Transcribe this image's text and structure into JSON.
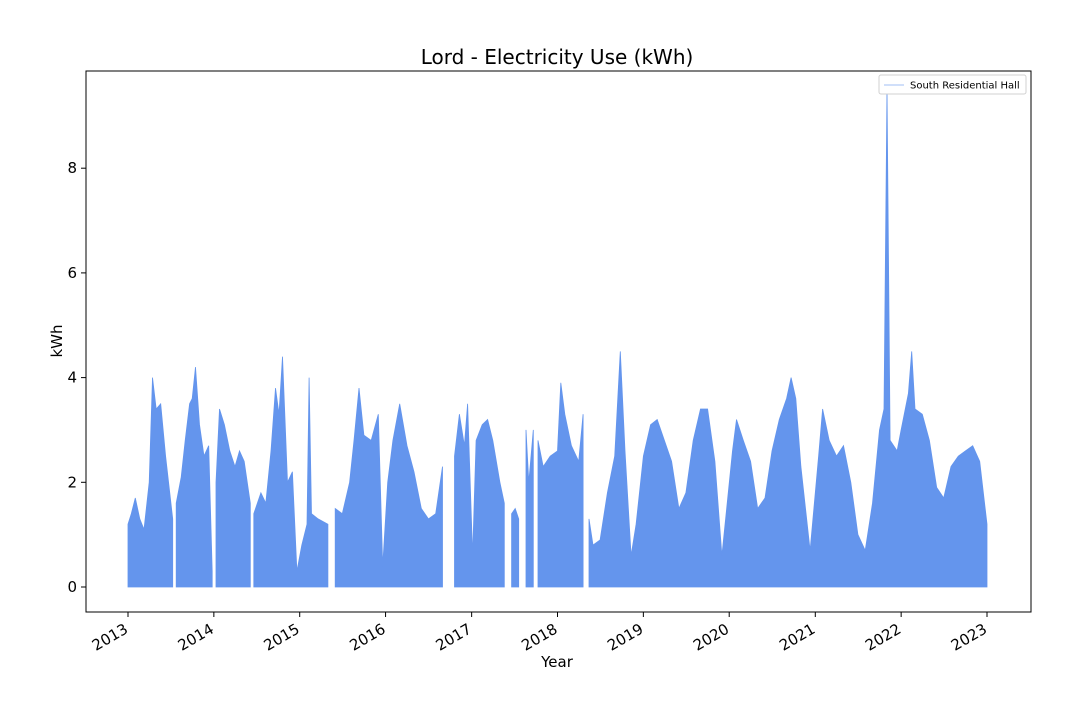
{
  "chart_data": {
    "type": "area",
    "title": "Lord - Electricity Use (kWh)",
    "xlabel": "Year",
    "ylabel": "kWh",
    "xlim": [
      "2013-01-01",
      "2023-01-01"
    ],
    "ylim": [
      -0.5,
      9.8
    ],
    "x_ticks": [
      "2013",
      "2014",
      "2015",
      "2016",
      "2017",
      "2018",
      "2019",
      "2020",
      "2021",
      "2022",
      "2023"
    ],
    "y_ticks": [
      "0",
      "2",
      "4",
      "6",
      "8"
    ],
    "legend": {
      "entries": [
        "South Residential Hall"
      ],
      "placement": "top-right"
    },
    "grid": false,
    "series": [
      {
        "name": "South Residential Hall",
        "color": "#6495ED",
        "baseline": 0,
        "segments": [
          {
            "start": "2013-01-01",
            "end": "2013-07-10",
            "points": [
              [
                "2013-01-01",
                1.2
              ],
              [
                "2013-01-15",
                1.4
              ],
              [
                "2013-02-01",
                1.7
              ],
              [
                "2013-02-20",
                1.3
              ],
              [
                "2013-03-10",
                1.1
              ],
              [
                "2013-04-01",
                2.0
              ],
              [
                "2013-04-15",
                4.0
              ],
              [
                "2013-05-01",
                3.4
              ],
              [
                "2013-05-20",
                3.5
              ],
              [
                "2013-06-10",
                2.5
              ],
              [
                "2013-07-10",
                1.3
              ]
            ]
          },
          {
            "start": "2013-07-25",
            "end": "2013-12-25",
            "points": [
              [
                "2013-07-25",
                1.6
              ],
              [
                "2013-08-15",
                2.1
              ],
              [
                "2013-09-01",
                2.8
              ],
              [
                "2013-09-20",
                3.5
              ],
              [
                "2013-10-01",
                3.6
              ],
              [
                "2013-10-15",
                4.2
              ],
              [
                "2013-11-01",
                3.1
              ],
              [
                "2013-11-20",
                2.5
              ],
              [
                "2013-12-10",
                2.7
              ],
              [
                "2013-12-25",
                0.3
              ]
            ]
          },
          {
            "start": "2014-01-10",
            "end": "2014-06-05",
            "points": [
              [
                "2014-01-10",
                2.0
              ],
              [
                "2014-01-25",
                3.4
              ],
              [
                "2014-02-15",
                3.1
              ],
              [
                "2014-03-10",
                2.6
              ],
              [
                "2014-04-01",
                2.3
              ],
              [
                "2014-04-20",
                2.6
              ],
              [
                "2014-05-10",
                2.4
              ],
              [
                "2014-06-05",
                1.6
              ]
            ]
          },
          {
            "start": "2014-06-20",
            "end": "2015-05-01",
            "points": [
              [
                "2014-06-20",
                1.4
              ],
              [
                "2014-07-20",
                1.8
              ],
              [
                "2014-08-10",
                1.6
              ],
              [
                "2014-09-01",
                2.6
              ],
              [
                "2014-09-20",
                3.8
              ],
              [
                "2014-10-05",
                3.3
              ],
              [
                "2014-10-20",
                4.4
              ],
              [
                "2014-11-10",
                2.0
              ],
              [
                "2014-12-01",
                2.2
              ],
              [
                "2014-12-20",
                0.3
              ],
              [
                "2015-01-10",
                0.8
              ],
              [
                "2015-02-01",
                1.2
              ],
              [
                "2015-02-10",
                4.0
              ],
              [
                "2015-02-20",
                1.4
              ],
              [
                "2015-03-20",
                1.3
              ],
              [
                "2015-05-01",
                1.2
              ]
            ]
          },
          {
            "start": "2015-06-01",
            "end": "2016-08-30",
            "points": [
              [
                "2015-06-01",
                1.5
              ],
              [
                "2015-07-01",
                1.4
              ],
              [
                "2015-08-01",
                2.0
              ],
              [
                "2015-08-20",
                2.8
              ],
              [
                "2015-09-10",
                3.8
              ],
              [
                "2015-10-01",
                2.9
              ],
              [
                "2015-11-01",
                2.8
              ],
              [
                "2015-12-01",
                3.3
              ],
              [
                "2015-12-20",
                0.4
              ],
              [
                "2016-01-10",
                2.0
              ],
              [
                "2016-02-01",
                2.8
              ],
              [
                "2016-03-01",
                3.5
              ],
              [
                "2016-04-01",
                2.7
              ],
              [
                "2016-05-01",
                2.2
              ],
              [
                "2016-06-01",
                1.5
              ],
              [
                "2016-07-01",
                1.3
              ],
              [
                "2016-08-01",
                1.4
              ],
              [
                "2016-08-30",
                2.3
              ]
            ]
          },
          {
            "start": "2016-10-20",
            "end": "2017-05-20",
            "points": [
              [
                "2016-10-20",
                2.5
              ],
              [
                "2016-11-10",
                3.3
              ],
              [
                "2016-12-01",
                2.7
              ],
              [
                "2016-12-15",
                3.5
              ],
              [
                "2017-01-05",
                0.6
              ],
              [
                "2017-01-20",
                2.8
              ],
              [
                "2017-02-15",
                3.1
              ],
              [
                "2017-03-10",
                3.2
              ],
              [
                "2017-04-01",
                2.8
              ],
              [
                "2017-05-01",
                2.0
              ],
              [
                "2017-05-20",
                1.6
              ]
            ]
          },
          {
            "start": "2017-06-20",
            "end": "2017-07-20",
            "points": [
              [
                "2017-06-20",
                1.4
              ],
              [
                "2017-07-05",
                1.5
              ],
              [
                "2017-07-20",
                1.3
              ]
            ]
          },
          {
            "start": "2017-08-20",
            "end": "2017-09-20",
            "points": [
              [
                "2017-08-20",
                3.0
              ],
              [
                "2017-09-01",
                2.0
              ],
              [
                "2017-09-20",
                3.0
              ]
            ]
          },
          {
            "start": "2017-10-10",
            "end": "2018-04-20",
            "points": [
              [
                "2017-10-10",
                2.8
              ],
              [
                "2017-11-01",
                2.3
              ],
              [
                "2017-12-01",
                2.5
              ],
              [
                "2018-01-01",
                2.6
              ],
              [
                "2018-01-15",
                3.9
              ],
              [
                "2018-02-01",
                3.3
              ],
              [
                "2018-03-01",
                2.7
              ],
              [
                "2018-04-01",
                2.4
              ],
              [
                "2018-04-20",
                3.3
              ]
            ]
          },
          {
            "start": "2018-05-15",
            "end": "2023-01-01",
            "points": [
              [
                "2018-05-15",
                1.3
              ],
              [
                "2018-06-01",
                0.8
              ],
              [
                "2018-07-01",
                0.9
              ],
              [
                "2018-08-01",
                1.8
              ],
              [
                "2018-09-01",
                2.5
              ],
              [
                "2018-09-25",
                4.5
              ],
              [
                "2018-10-15",
                2.6
              ],
              [
                "2018-11-10",
                0.6
              ],
              [
                "2018-12-01",
                1.2
              ],
              [
                "2019-01-01",
                2.5
              ],
              [
                "2019-02-01",
                3.1
              ],
              [
                "2019-03-01",
                3.2
              ],
              [
                "2019-05-01",
                2.4
              ],
              [
                "2019-06-01",
                1.5
              ],
              [
                "2019-07-01",
                1.8
              ],
              [
                "2019-08-01",
                2.8
              ],
              [
                "2019-09-01",
                3.4
              ],
              [
                "2019-10-01",
                3.4
              ],
              [
                "2019-11-01",
                2.4
              ],
              [
                "2019-12-01",
                0.6
              ],
              [
                "2020-01-15",
                2.6
              ],
              [
                "2020-02-01",
                3.2
              ],
              [
                "2020-03-01",
                2.8
              ],
              [
                "2020-04-01",
                2.4
              ],
              [
                "2020-05-01",
                1.5
              ],
              [
                "2020-06-01",
                1.7
              ],
              [
                "2020-07-01",
                2.6
              ],
              [
                "2020-08-01",
                3.2
              ],
              [
                "2020-09-01",
                3.6
              ],
              [
                "2020-09-20",
                4.0
              ],
              [
                "2020-10-10",
                3.6
              ],
              [
                "2020-11-01",
                2.3
              ],
              [
                "2020-12-10",
                0.7
              ],
              [
                "2021-01-15",
                2.5
              ],
              [
                "2021-02-01",
                3.4
              ],
              [
                "2021-03-01",
                2.8
              ],
              [
                "2021-04-01",
                2.5
              ],
              [
                "2021-05-01",
                2.7
              ],
              [
                "2021-06-01",
                2.0
              ],
              [
                "2021-07-01",
                1.0
              ],
              [
                "2021-08-01",
                0.7
              ],
              [
                "2021-09-01",
                1.6
              ],
              [
                "2021-10-01",
                3.0
              ],
              [
                "2021-10-20",
                3.4
              ],
              [
                "2021-11-02",
                9.5
              ],
              [
                "2021-11-15",
                2.8
              ],
              [
                "2021-12-15",
                2.6
              ],
              [
                "2022-01-01",
                3.0
              ],
              [
                "2022-02-01",
                3.7
              ],
              [
                "2022-02-15",
                4.5
              ],
              [
                "2022-03-01",
                3.4
              ],
              [
                "2022-04-01",
                3.3
              ],
              [
                "2022-05-01",
                2.8
              ],
              [
                "2022-06-01",
                1.9
              ],
              [
                "2022-07-01",
                1.7
              ],
              [
                "2022-08-01",
                2.3
              ],
              [
                "2022-09-01",
                2.5
              ],
              [
                "2022-10-01",
                2.6
              ],
              [
                "2022-11-01",
                2.7
              ],
              [
                "2022-12-01",
                2.4
              ],
              [
                "2023-01-01",
                1.2
              ]
            ]
          }
        ]
      }
    ]
  }
}
